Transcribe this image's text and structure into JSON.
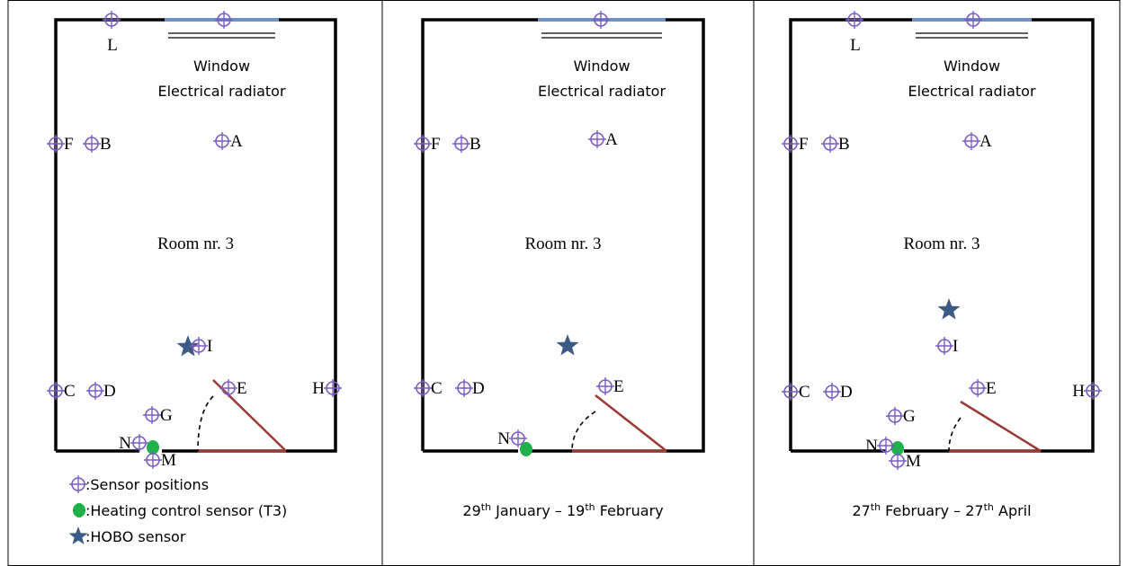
{
  "panels": [
    {
      "window_label": "Window",
      "radiator_label": "Electrical radiator",
      "room_label": "Room nr. 3",
      "sensors": [
        {
          "label": "L"
        },
        {
          "label": "F"
        },
        {
          "label": "B"
        },
        {
          "label": "A"
        },
        {
          "label": "I"
        },
        {
          "label": "C"
        },
        {
          "label": "D"
        },
        {
          "label": "E"
        },
        {
          "label": "H"
        },
        {
          "label": "G"
        },
        {
          "label": "N"
        },
        {
          "label": "M"
        }
      ],
      "legend": [
        {
          "text": ":Sensor positions"
        },
        {
          "text": ":Heating control sensor (T3)"
        },
        {
          "text": ":HOBO sensor"
        }
      ]
    },
    {
      "window_label": "Window",
      "radiator_label": "Electrical radiator",
      "room_label": "Room nr. 3",
      "sensors": [
        {
          "label": "F"
        },
        {
          "label": "B"
        },
        {
          "label": "A"
        },
        {
          "label": "C"
        },
        {
          "label": "D"
        },
        {
          "label": "E"
        },
        {
          "label": "N"
        }
      ],
      "caption": [
        {
          "text": "29"
        },
        {
          "text": "th",
          "sup": true
        },
        {
          "text": " January – 19"
        },
        {
          "text": "th",
          "sup": true
        },
        {
          "text": " February"
        }
      ]
    },
    {
      "window_label": "Window",
      "radiator_label": "Electrical radiator",
      "room_label": "Room nr. 3",
      "sensors": [
        {
          "label": "L"
        },
        {
          "label": "F"
        },
        {
          "label": "B"
        },
        {
          "label": "A"
        },
        {
          "label": "I"
        },
        {
          "label": "C"
        },
        {
          "label": "D"
        },
        {
          "label": "E"
        },
        {
          "label": "H"
        },
        {
          "label": "G"
        },
        {
          "label": "N"
        },
        {
          "label": "M"
        }
      ],
      "caption": [
        {
          "text": "27"
        },
        {
          "text": "th",
          "sup": true
        },
        {
          "text": " February – 27"
        },
        {
          "text": "th",
          "sup": true
        },
        {
          "text": " April"
        }
      ]
    }
  ]
}
